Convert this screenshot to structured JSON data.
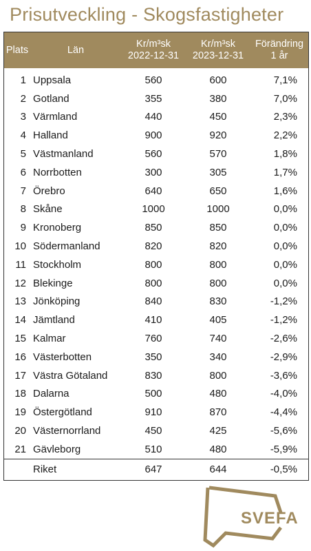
{
  "title": "Prisutveckling  - Skogsfastigheter",
  "header": {
    "plats": "Plats",
    "lan": "Län",
    "col_a_line1": "Kr/m³sk",
    "col_a_line2": "2022-12-31",
    "col_b_line1": "Kr/m³sk",
    "col_b_line2": "2023-12-31",
    "col_c_line1": "Förändring",
    "col_c_line2": "1 år"
  },
  "rows": [
    {
      "plats": "1",
      "lan": "Uppsala",
      "a": "560",
      "b": "600",
      "c": "7,1%"
    },
    {
      "plats": "2",
      "lan": "Gotland",
      "a": "355",
      "b": "380",
      "c": "7,0%"
    },
    {
      "plats": "3",
      "lan": "Värmland",
      "a": "440",
      "b": "450",
      "c": "2,3%"
    },
    {
      "plats": "4",
      "lan": "Halland",
      "a": "900",
      "b": "920",
      "c": "2,2%"
    },
    {
      "plats": "5",
      "lan": "Västmanland",
      "a": "560",
      "b": "570",
      "c": "1,8%"
    },
    {
      "plats": "6",
      "lan": "Norrbotten",
      "a": "300",
      "b": "305",
      "c": "1,7%"
    },
    {
      "plats": "7",
      "lan": "Örebro",
      "a": "640",
      "b": "650",
      "c": "1,6%"
    },
    {
      "plats": "8",
      "lan": "Skåne",
      "a": "1000",
      "b": "1000",
      "c": "0,0%"
    },
    {
      "plats": "9",
      "lan": "Kronoberg",
      "a": "850",
      "b": "850",
      "c": "0,0%"
    },
    {
      "plats": "10",
      "lan": "Södermanland",
      "a": "820",
      "b": "820",
      "c": "0,0%"
    },
    {
      "plats": "11",
      "lan": "Stockholm",
      "a": "800",
      "b": "800",
      "c": "0,0%"
    },
    {
      "plats": "12",
      "lan": "Blekinge",
      "a": "800",
      "b": "800",
      "c": "0,0%"
    },
    {
      "plats": "13",
      "lan": "Jönköping",
      "a": "840",
      "b": "830",
      "c": "-1,2%"
    },
    {
      "plats": "14",
      "lan": "Jämtland",
      "a": "410",
      "b": "405",
      "c": "-1,2%"
    },
    {
      "plats": "15",
      "lan": "Kalmar",
      "a": "760",
      "b": "740",
      "c": "-2,6%"
    },
    {
      "plats": "16",
      "lan": "Västerbotten",
      "a": "350",
      "b": "340",
      "c": "-2,9%"
    },
    {
      "plats": "17",
      "lan": "Västra Götaland",
      "a": "830",
      "b": "800",
      "c": "-3,6%"
    },
    {
      "plats": "18",
      "lan": "Dalarna",
      "a": "500",
      "b": "480",
      "c": "-4,0%"
    },
    {
      "plats": "19",
      "lan": "Östergötland",
      "a": "910",
      "b": "870",
      "c": "-4,4%"
    },
    {
      "plats": "20",
      "lan": "Västernorrland",
      "a": "450",
      "b": "425",
      "c": "-5,6%"
    },
    {
      "plats": "21",
      "lan": "Gävleborg",
      "a": "510",
      "b": "480",
      "c": "-5,9%"
    }
  ],
  "footer": {
    "lan": "Riket",
    "a": "647",
    "b": "644",
    "c": "-0,5%"
  },
  "logo": {
    "text": "SVEFA",
    "icon": "svefa-logo-icon"
  },
  "colors": {
    "accent": "#a08a5e",
    "header_text": "#ffffff",
    "border": "#333333"
  }
}
